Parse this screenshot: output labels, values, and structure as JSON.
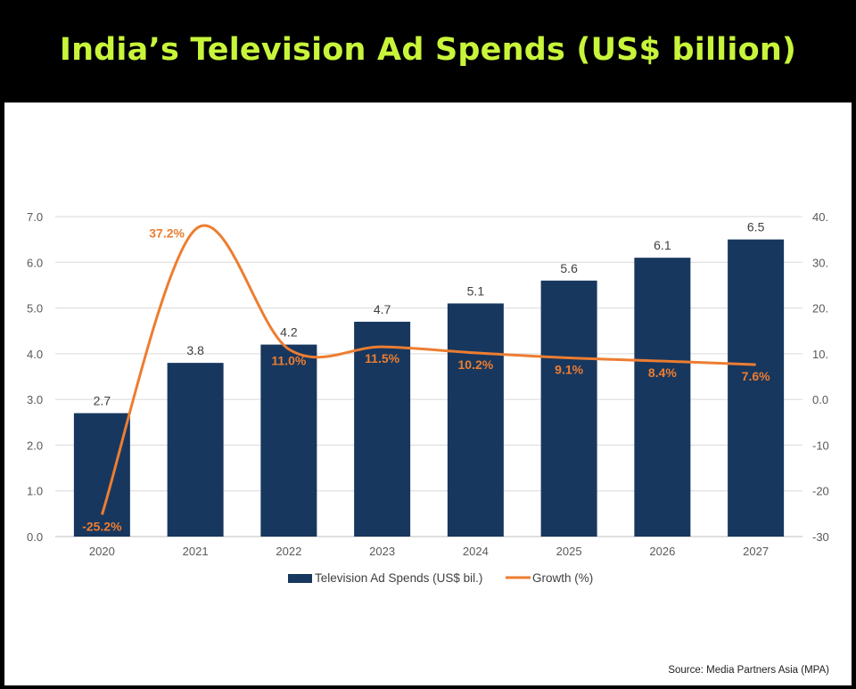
{
  "title": "India’s Television Ad Spends (US$ billion)",
  "source": "Source: Media Partners Asia (MPA)",
  "colors": {
    "title": "#c8f53a",
    "bar": "#17375e",
    "line": "#ed7d31",
    "grid": "#d9d9d9"
  },
  "chart_data": {
    "type": "bar",
    "categories": [
      "2020",
      "2021",
      "2022",
      "2023",
      "2024",
      "2025",
      "2026",
      "2027"
    ],
    "series": [
      {
        "name": "Television Ad Spends (US$ bil.)",
        "type": "bar",
        "axis": "left",
        "values": [
          2.7,
          3.8,
          4.2,
          4.7,
          5.1,
          5.6,
          6.1,
          6.5
        ]
      },
      {
        "name": "Growth (%)",
        "type": "line",
        "axis": "right",
        "values": [
          -25.2,
          37.2,
          11.0,
          11.5,
          10.2,
          9.1,
          8.4,
          7.6
        ]
      }
    ],
    "bar_labels": [
      "2.7",
      "3.8",
      "4.2",
      "4.7",
      "5.1",
      "5.6",
      "6.1",
      "6.5"
    ],
    "line_labels": [
      "-25.2%",
      "37.2%",
      "11.0%",
      "11.5%",
      "10.2%",
      "9.1%",
      "8.4%",
      "7.6%"
    ],
    "left_axis": {
      "ylim": [
        0,
        7
      ],
      "ticks": [
        "0.0",
        "1.0",
        "2.0",
        "3.0",
        "4.0",
        "5.0",
        "6.0",
        "7.0"
      ]
    },
    "right_axis": {
      "ylim": [
        -30,
        40
      ],
      "ticks": [
        "-30",
        "-20",
        "-10",
        "0.0",
        "10.",
        "20.",
        "30.",
        "40."
      ]
    },
    "grid": true,
    "legend": "bottom"
  }
}
